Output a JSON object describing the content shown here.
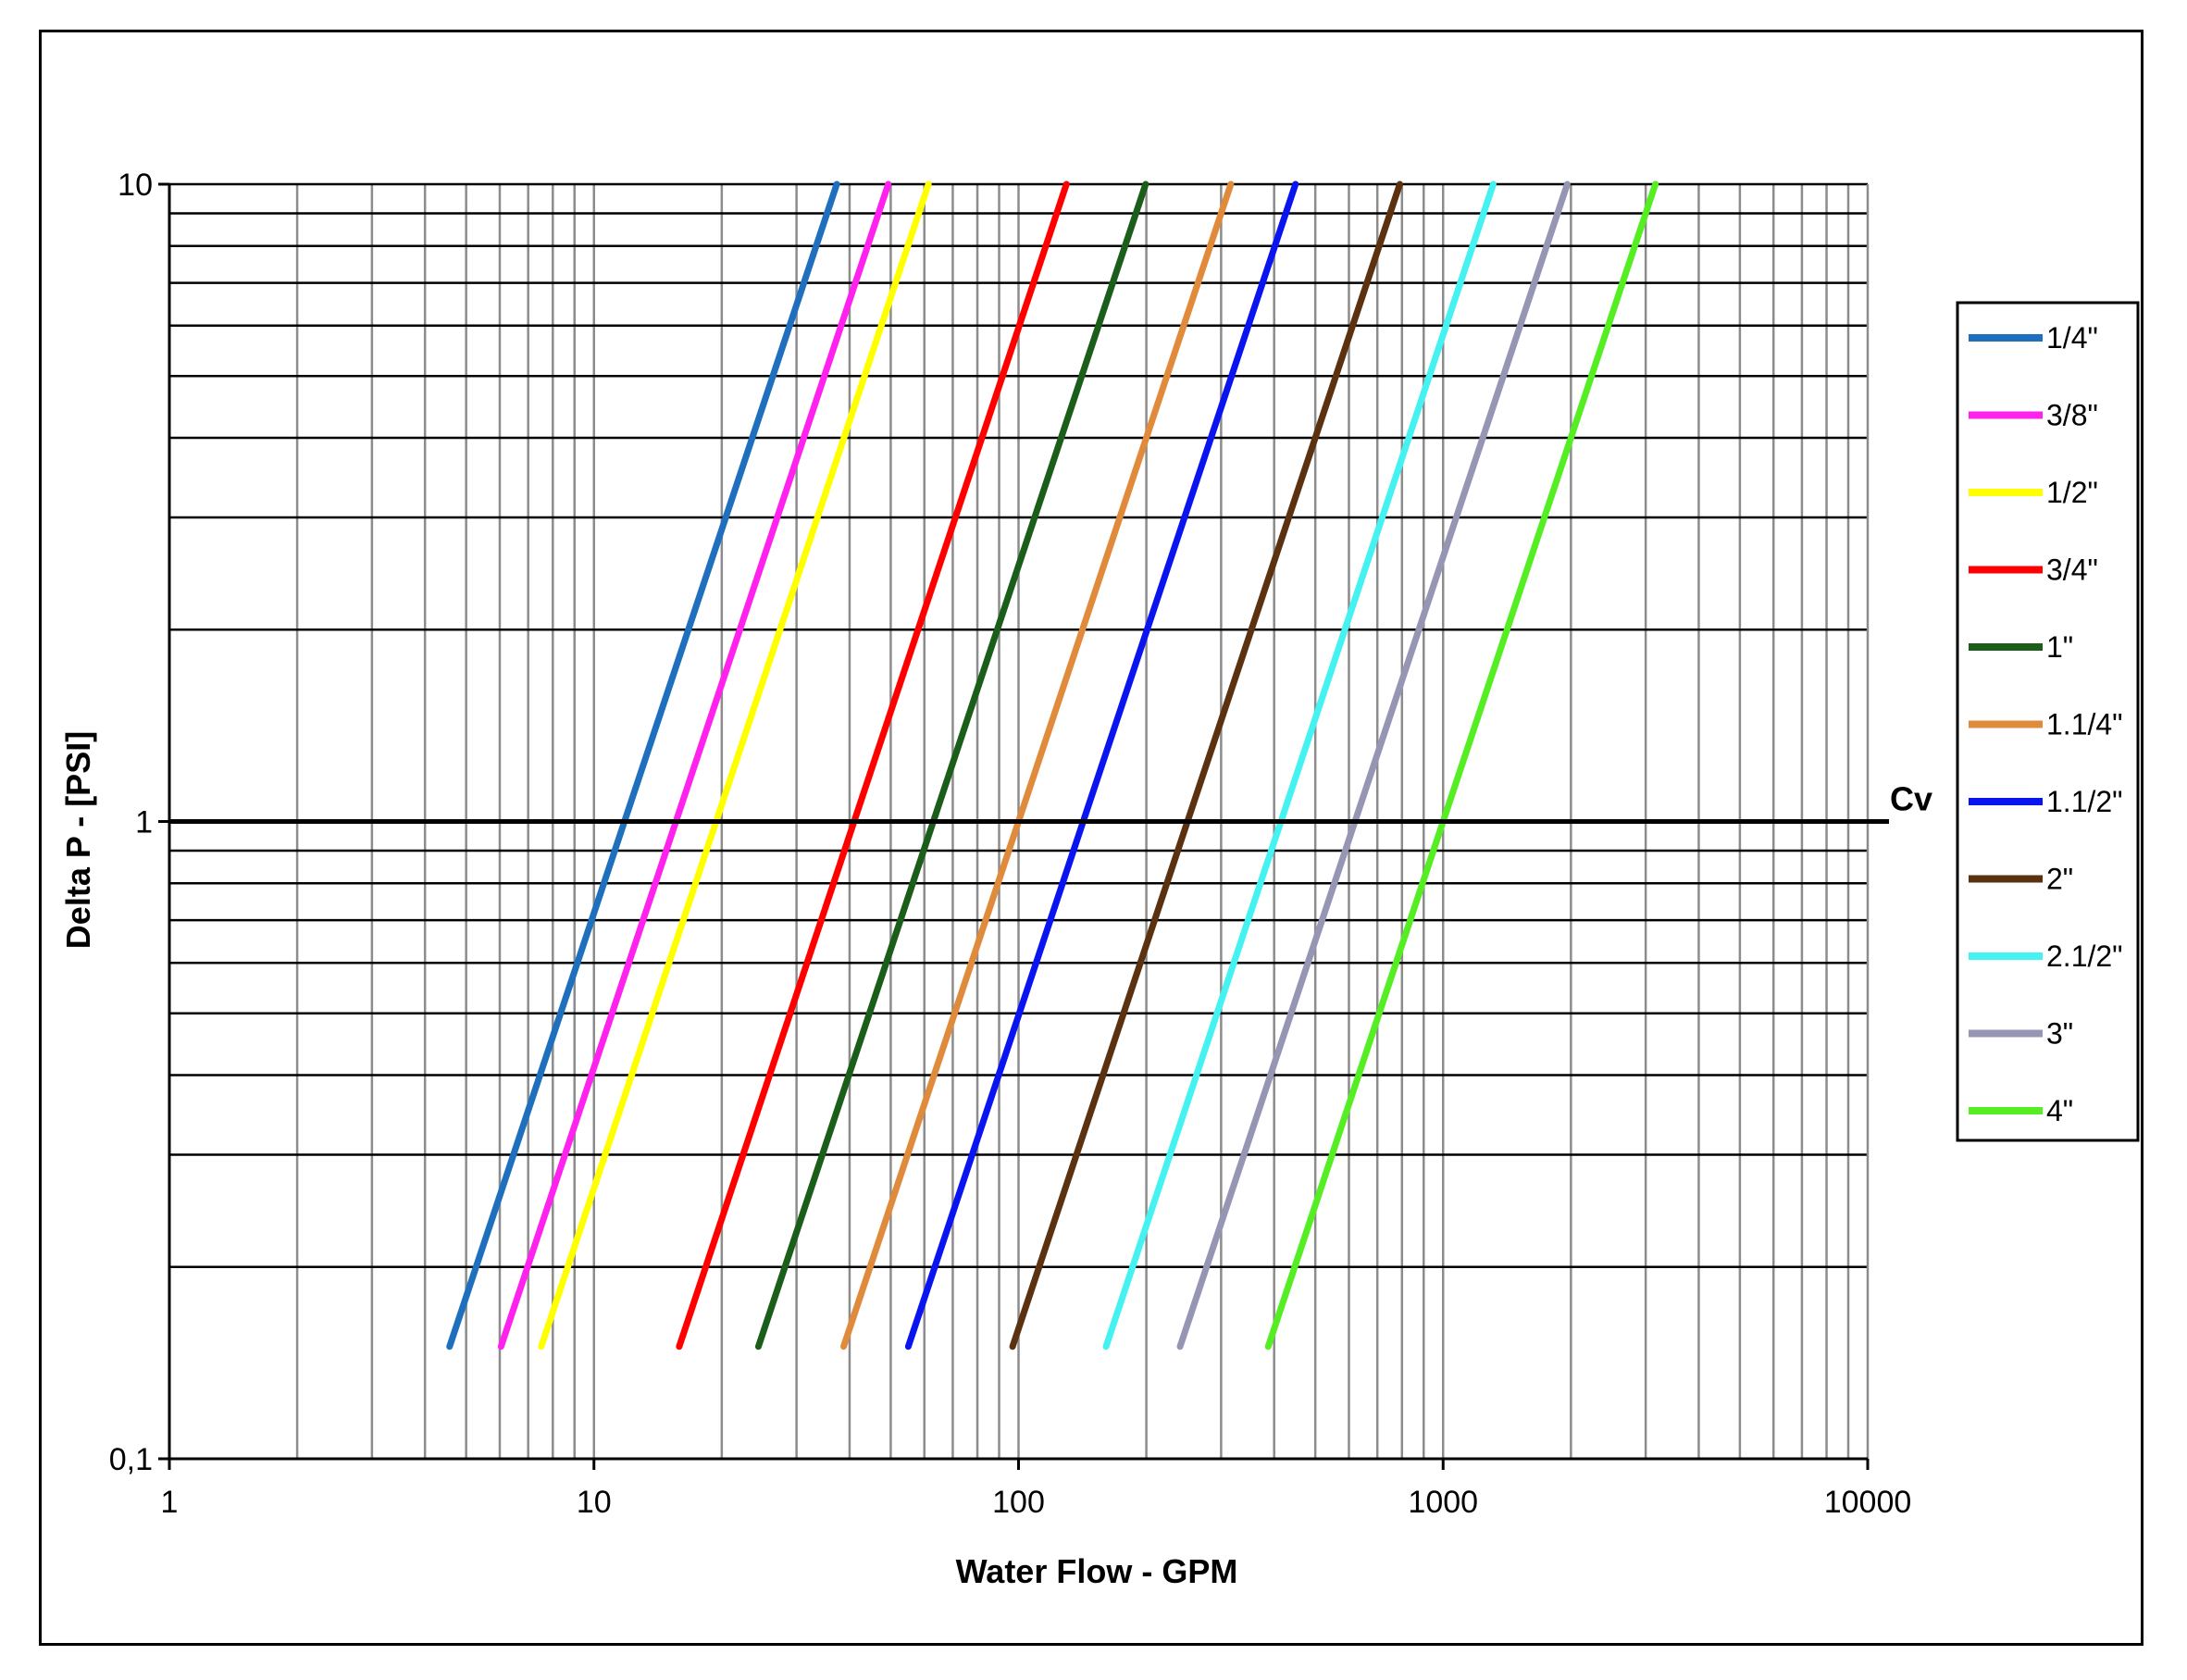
{
  "chart_data": {
    "type": "line",
    "title": "",
    "xlabel": "Water Flow - GPM",
    "ylabel": "Delta P - [PSI]",
    "x_scale": "log",
    "y_scale": "log",
    "xlim": [
      1,
      10000
    ],
    "ylim": [
      0.1,
      10
    ],
    "x_ticks": [
      "1",
      "10",
      "100",
      "1000",
      "10000"
    ],
    "y_ticks": [
      "0,1",
      "1",
      "10"
    ],
    "grid": true,
    "legend_position": "right",
    "annotations": [
      {
        "text": "Cv",
        "y": 1
      }
    ],
    "series": [
      {
        "name": "1/4\"",
        "color": "#1f6fbf",
        "cv": 11.8
      },
      {
        "name": "3/8\"",
        "color": "#ff22ee",
        "cv": 15.6
      },
      {
        "name": "1/2\"",
        "color": "#ffff00",
        "cv": 19.4
      },
      {
        "name": "3/4\"",
        "color": "#ff0000",
        "cv": 41
      },
      {
        "name": "1\"",
        "color": "#1a5e1a",
        "cv": 63
      },
      {
        "name": "1.1/4\"",
        "color": "#e08a3c",
        "cv": 100
      },
      {
        "name": "1.1/2\"",
        "color": "#0a14f0",
        "cv": 142
      },
      {
        "name": "2\"",
        "color": "#5a3210",
        "cv": 250
      },
      {
        "name": "2.1/2\"",
        "color": "#44f2f2",
        "cv": 415
      },
      {
        "name": "3\"",
        "color": "#9696b4",
        "cv": 620
      },
      {
        "name": "4\"",
        "color": "#55ee22",
        "cv": 1000
      }
    ]
  }
}
